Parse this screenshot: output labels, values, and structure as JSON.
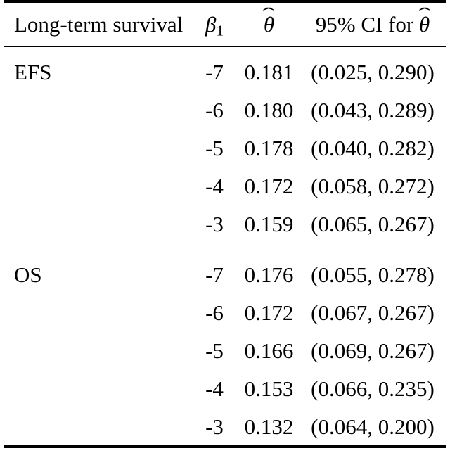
{
  "page": {
    "background": "#ffffff",
    "text_color": "#000000",
    "rule_color": "#000000"
  },
  "table": {
    "headers": {
      "col1": "Long-term survival",
      "col2": {
        "symbol": "β",
        "subscript": "1"
      },
      "col3": {
        "symbol": "θ",
        "hat": "ˆ"
      },
      "col4": {
        "text": "95% CI for ",
        "symbol": "θ",
        "hat": "ˆ"
      }
    },
    "groups": [
      {
        "label": "EFS",
        "rows": [
          {
            "beta1": "-7",
            "theta_hat": "0.181",
            "ci": "(0.025, 0.290)"
          },
          {
            "beta1": "-6",
            "theta_hat": "0.180",
            "ci": "(0.043, 0.289)"
          },
          {
            "beta1": "-5",
            "theta_hat": "0.178",
            "ci": "(0.040, 0.282)"
          },
          {
            "beta1": "-4",
            "theta_hat": "0.172",
            "ci": "(0.058, 0.272)"
          },
          {
            "beta1": "-3",
            "theta_hat": "0.159",
            "ci": "(0.065, 0.267)"
          }
        ]
      },
      {
        "label": "OS",
        "rows": [
          {
            "beta1": "-7",
            "theta_hat": "0.176",
            "ci": "(0.055, 0.278)"
          },
          {
            "beta1": "-6",
            "theta_hat": "0.172",
            "ci": "(0.067, 0.267)"
          },
          {
            "beta1": "-5",
            "theta_hat": "0.166",
            "ci": "(0.069, 0.267)"
          },
          {
            "beta1": "-4",
            "theta_hat": "0.153",
            "ci": "(0.066, 0.235)"
          },
          {
            "beta1": "-3",
            "theta_hat": "0.132",
            "ci": "(0.064, 0.200)"
          }
        ]
      }
    ]
  }
}
